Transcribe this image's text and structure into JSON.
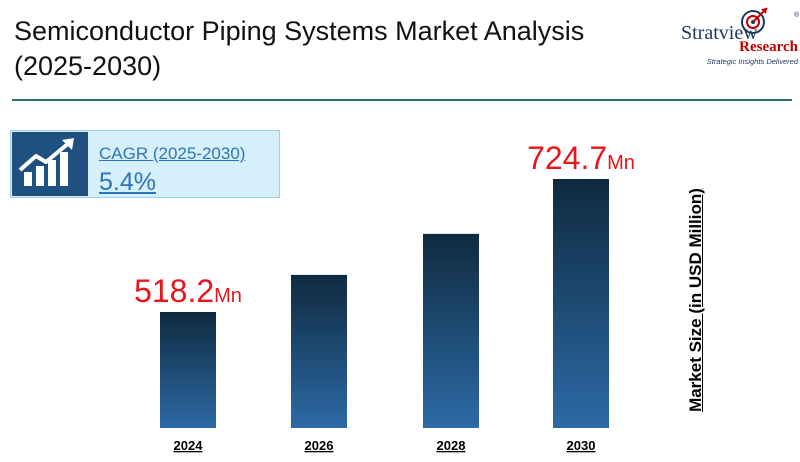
{
  "header": {
    "title_line1": "Semiconductor Piping Systems Market Analysis",
    "title_line2": "(2025-2030)"
  },
  "logo": {
    "word1": "Stratview",
    "word2": "Research",
    "tagline": "Strategic Insights Delivered",
    "registered": "®"
  },
  "cagr": {
    "label": "CAGR (2025-2030)",
    "value": "5.4%",
    "icon": "bar-chart-growth-icon"
  },
  "colors": {
    "bar_top": "#0f2a3f",
    "bar_bottom": "#2c6aa6",
    "value_label": "#e8161b",
    "accent": "#1f5180"
  },
  "chart_data": {
    "type": "bar",
    "categories": [
      "2024",
      "2026",
      "2028",
      "2030"
    ],
    "values": [
      518.2,
      575.8,
      639.5,
      724.7
    ],
    "data_labels": [
      {
        "value": "518.2",
        "unit": "Mn"
      },
      null,
      null,
      {
        "value": "724.7",
        "unit": "Mn"
      }
    ],
    "ylabel": "Market Size (in USD Million)",
    "ylim": [
      0,
      800
    ],
    "grid": false
  }
}
